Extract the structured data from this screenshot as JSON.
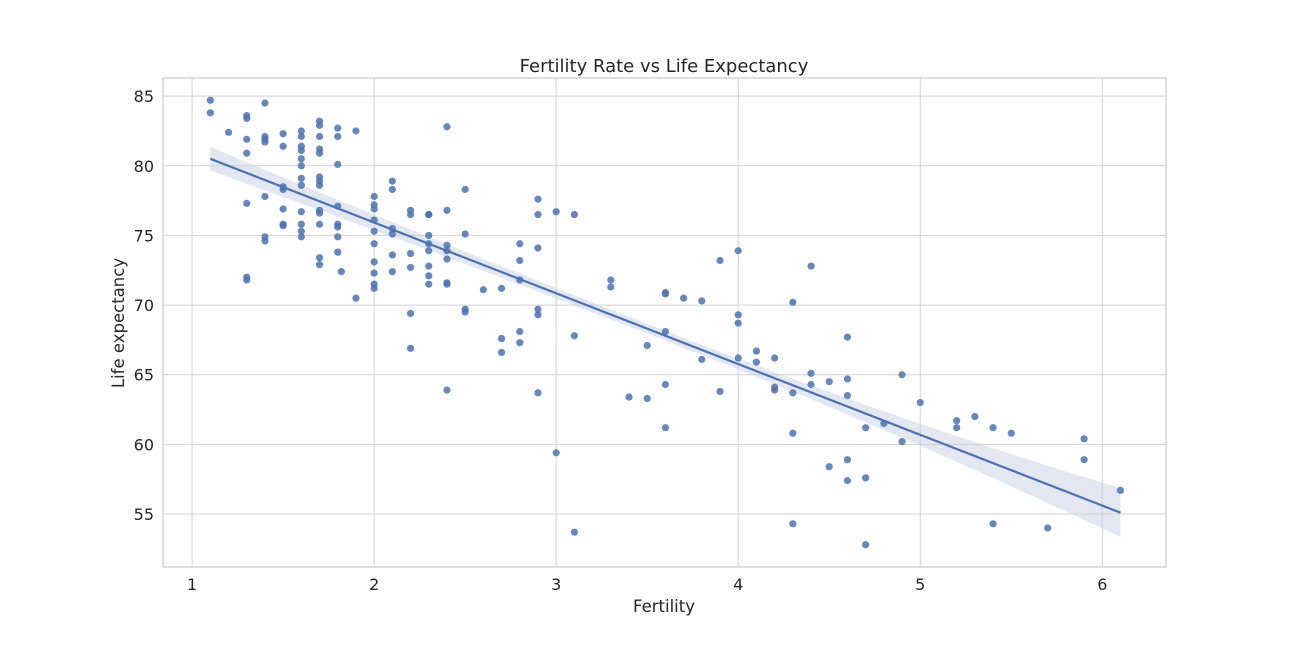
{
  "chart_data": {
    "type": "scatter",
    "title": "Fertility Rate vs Life Expectancy",
    "xlabel": "Fertility",
    "ylabel": "Life expectancy",
    "xlim": [
      0.84,
      6.35
    ],
    "ylim": [
      51.2,
      86.3
    ],
    "xticks": [
      1,
      2,
      3,
      4,
      5,
      6
    ],
    "yticks": [
      55,
      60,
      65,
      70,
      75,
      80,
      85
    ],
    "grid": true,
    "legend": "none",
    "colors": {
      "point": "#4c72b0",
      "line": "#4c72b0",
      "band": "#c5d0e6",
      "frame": "#cccccc"
    },
    "regression": {
      "x_range": [
        1.1,
        6.1
      ],
      "y_at_ends": [
        80.5,
        55.1
      ],
      "ci_upper": [
        81.3,
        56.8
      ],
      "ci_lower": [
        79.6,
        53.3
      ]
    },
    "points": [
      [
        1.1,
        84.7
      ],
      [
        1.1,
        83.8
      ],
      [
        1.2,
        82.4
      ],
      [
        1.3,
        83.6
      ],
      [
        1.3,
        83.4
      ],
      [
        1.3,
        81.9
      ],
      [
        1.3,
        80.9
      ],
      [
        1.3,
        77.3
      ],
      [
        1.3,
        72.0
      ],
      [
        1.3,
        71.8
      ],
      [
        1.4,
        84.5
      ],
      [
        1.4,
        82.1
      ],
      [
        1.4,
        81.9
      ],
      [
        1.4,
        81.7
      ],
      [
        1.4,
        77.8
      ],
      [
        1.4,
        74.9
      ],
      [
        1.4,
        74.6
      ],
      [
        1.5,
        82.3
      ],
      [
        1.5,
        81.4
      ],
      [
        1.5,
        78.5
      ],
      [
        1.5,
        78.3
      ],
      [
        1.5,
        76.9
      ],
      [
        1.5,
        75.8
      ],
      [
        1.5,
        75.7
      ],
      [
        1.6,
        82.5
      ],
      [
        1.6,
        82.1
      ],
      [
        1.6,
        81.4
      ],
      [
        1.6,
        81.1
      ],
      [
        1.6,
        80.5
      ],
      [
        1.6,
        80.0
      ],
      [
        1.6,
        79.1
      ],
      [
        1.6,
        78.6
      ],
      [
        1.6,
        76.7
      ],
      [
        1.6,
        75.8
      ],
      [
        1.6,
        75.3
      ],
      [
        1.6,
        74.9
      ],
      [
        1.7,
        83.2
      ],
      [
        1.7,
        82.9
      ],
      [
        1.7,
        82.1
      ],
      [
        1.7,
        81.2
      ],
      [
        1.7,
        80.9
      ],
      [
        1.7,
        79.2
      ],
      [
        1.7,
        78.9
      ],
      [
        1.7,
        78.6
      ],
      [
        1.7,
        76.8
      ],
      [
        1.7,
        76.6
      ],
      [
        1.7,
        75.8
      ],
      [
        1.7,
        73.4
      ],
      [
        1.7,
        72.9
      ],
      [
        1.8,
        82.7
      ],
      [
        1.8,
        82.1
      ],
      [
        1.8,
        80.1
      ],
      [
        1.8,
        77.1
      ],
      [
        1.8,
        75.8
      ],
      [
        1.8,
        75.6
      ],
      [
        1.8,
        74.9
      ],
      [
        1.8,
        73.8
      ],
      [
        1.82,
        72.4
      ],
      [
        1.9,
        82.5
      ],
      [
        1.9,
        70.5
      ],
      [
        2.0,
        77.8
      ],
      [
        2.0,
        77.2
      ],
      [
        2.0,
        76.9
      ],
      [
        2.0,
        76.1
      ],
      [
        2.0,
        75.3
      ],
      [
        2.0,
        74.4
      ],
      [
        2.0,
        73.1
      ],
      [
        2.0,
        72.3
      ],
      [
        2.0,
        71.5
      ],
      [
        2.0,
        71.2
      ],
      [
        2.1,
        78.9
      ],
      [
        2.1,
        78.3
      ],
      [
        2.1,
        75.5
      ],
      [
        2.1,
        75.1
      ],
      [
        2.1,
        73.6
      ],
      [
        2.1,
        72.4
      ],
      [
        2.2,
        76.8
      ],
      [
        2.2,
        76.5
      ],
      [
        2.2,
        73.7
      ],
      [
        2.2,
        72.7
      ],
      [
        2.2,
        69.4
      ],
      [
        2.2,
        66.9
      ],
      [
        2.3,
        76.5
      ],
      [
        2.3,
        76.5
      ],
      [
        2.3,
        75.0
      ],
      [
        2.3,
        74.4
      ],
      [
        2.3,
        73.9
      ],
      [
        2.3,
        72.8
      ],
      [
        2.3,
        72.1
      ],
      [
        2.3,
        71.5
      ],
      [
        2.4,
        82.8
      ],
      [
        2.4,
        76.8
      ],
      [
        2.4,
        74.3
      ],
      [
        2.4,
        73.9
      ],
      [
        2.4,
        73.3
      ],
      [
        2.4,
        71.6
      ],
      [
        2.4,
        71.5
      ],
      [
        2.4,
        63.9
      ],
      [
        2.5,
        78.3
      ],
      [
        2.5,
        75.1
      ],
      [
        2.5,
        69.7
      ],
      [
        2.5,
        69.5
      ],
      [
        2.6,
        71.1
      ],
      [
        2.7,
        71.2
      ],
      [
        2.7,
        67.6
      ],
      [
        2.7,
        66.6
      ],
      [
        2.8,
        74.4
      ],
      [
        2.8,
        73.2
      ],
      [
        2.8,
        71.8
      ],
      [
        2.8,
        68.1
      ],
      [
        2.8,
        67.3
      ],
      [
        2.9,
        77.6
      ],
      [
        2.9,
        76.5
      ],
      [
        2.9,
        74.1
      ],
      [
        2.9,
        69.7
      ],
      [
        2.9,
        69.3
      ],
      [
        2.9,
        63.7
      ],
      [
        3.0,
        76.7
      ],
      [
        3.0,
        59.4
      ],
      [
        3.1,
        76.5
      ],
      [
        3.1,
        67.8
      ],
      [
        3.1,
        53.7
      ],
      [
        3.3,
        71.8
      ],
      [
        3.3,
        71.3
      ],
      [
        3.4,
        63.4
      ],
      [
        3.5,
        67.1
      ],
      [
        3.5,
        63.3
      ],
      [
        3.6,
        70.9
      ],
      [
        3.6,
        70.8
      ],
      [
        3.6,
        68.1
      ],
      [
        3.6,
        64.3
      ],
      [
        3.6,
        61.2
      ],
      [
        3.7,
        70.5
      ],
      [
        3.8,
        70.3
      ],
      [
        3.8,
        66.1
      ],
      [
        3.9,
        73.2
      ],
      [
        3.9,
        63.8
      ],
      [
        4.0,
        73.9
      ],
      [
        4.0,
        69.3
      ],
      [
        4.0,
        68.7
      ],
      [
        4.0,
        66.2
      ],
      [
        4.1,
        66.7
      ],
      [
        4.1,
        65.9
      ],
      [
        4.2,
        66.2
      ],
      [
        4.2,
        64.1
      ],
      [
        4.2,
        63.9
      ],
      [
        4.3,
        70.2
      ],
      [
        4.3,
        63.7
      ],
      [
        4.3,
        60.8
      ],
      [
        4.3,
        54.3
      ],
      [
        4.4,
        72.8
      ],
      [
        4.4,
        65.1
      ],
      [
        4.4,
        64.3
      ],
      [
        4.5,
        64.5
      ],
      [
        4.5,
        58.4
      ],
      [
        4.6,
        67.7
      ],
      [
        4.6,
        64.7
      ],
      [
        4.6,
        63.5
      ],
      [
        4.6,
        58.9
      ],
      [
        4.6,
        57.4
      ],
      [
        4.7,
        61.2
      ],
      [
        4.7,
        57.6
      ],
      [
        4.7,
        52.8
      ],
      [
        4.8,
        61.5
      ],
      [
        4.9,
        65.0
      ],
      [
        4.9,
        60.2
      ],
      [
        5.0,
        63.0
      ],
      [
        5.2,
        61.7
      ],
      [
        5.2,
        61.2
      ],
      [
        5.3,
        62.0
      ],
      [
        5.4,
        61.2
      ],
      [
        5.4,
        54.3
      ],
      [
        5.5,
        60.8
      ],
      [
        5.7,
        54.0
      ],
      [
        5.9,
        60.4
      ],
      [
        5.9,
        58.9
      ],
      [
        6.1,
        56.7
      ]
    ]
  }
}
